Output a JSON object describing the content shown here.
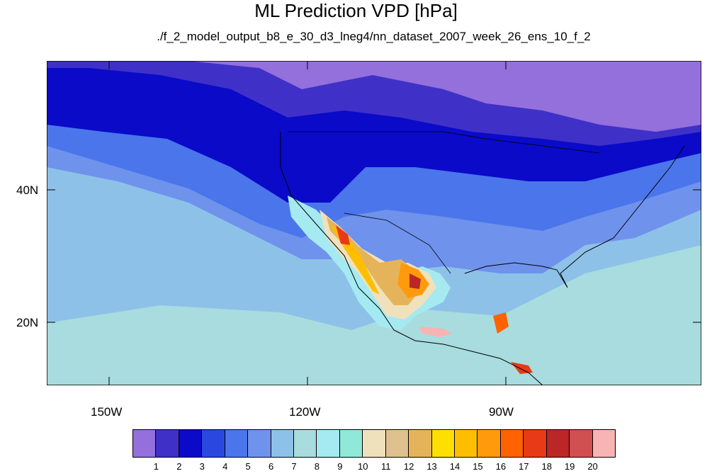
{
  "map": {
    "title": "ML Prediction VPD [hPa]",
    "subtitle": "./f_2_model_output_b8_e_30_d3_lneg4/nn_dataset_2007_week_26_ens_10_f_2",
    "lon_labels": [
      "150W",
      "120W",
      "90W"
    ],
    "lat_labels": [
      "40N",
      "20N"
    ],
    "extent": {
      "lon_min": -160,
      "lon_max": -61,
      "lat_min": 10,
      "lat_max": 59
    }
  },
  "colorbar": {
    "levels": [
      "1",
      "2",
      "3",
      "4",
      "5",
      "6",
      "7",
      "8",
      "9",
      "10",
      "11",
      "12",
      "13",
      "14",
      "15",
      "16",
      "17",
      "18",
      "19",
      "20"
    ],
    "colors": [
      "#9370db",
      "#3f30c8",
      "#0a0ac8",
      "#2a48e0",
      "#4b75ea",
      "#6f92ec",
      "#8ec1e8",
      "#a8dcdf",
      "#a5eaf1",
      "#8fe8d8",
      "#f0e1bd",
      "#dfc08f",
      "#e5b45a",
      "#fde000",
      "#ffbe00",
      "#ff9a0d",
      "#ff6200",
      "#e83a16",
      "#bb2627",
      "#d04f50",
      "#f8b3b3"
    ]
  }
}
